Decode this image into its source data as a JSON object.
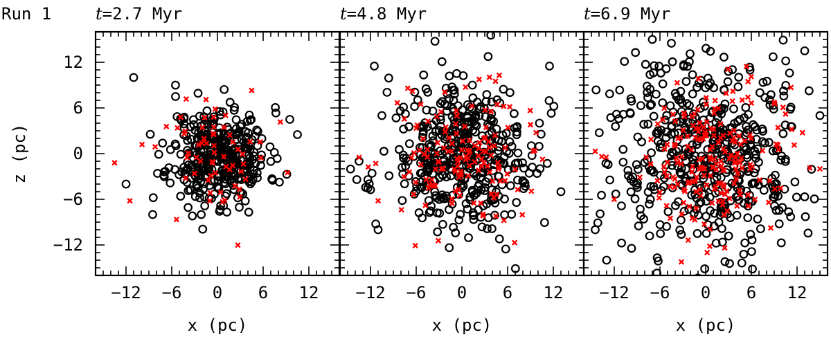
{
  "run_label": "Run 1",
  "ylabel": "z (pc)",
  "xlabel": "x (pc)",
  "colors": {
    "circle": "#000000",
    "cross": "#ff0000",
    "axes": "#000000"
  },
  "chart_data": [
    {
      "type": "scatter",
      "title": "t=2.7 Myr",
      "title_var": "t",
      "title_rest": "=2.7 Myr",
      "xlabel": "x (pc)",
      "ylabel": "z (pc)",
      "xlim": [
        -16,
        16
      ],
      "ylim": [
        -16,
        16
      ],
      "xticks": [
        -12,
        -6,
        0,
        6,
        12
      ],
      "yticks": [
        -12,
        -6,
        0,
        6,
        12
      ],
      "tick_labels": [
        "−12",
        "−6",
        "0",
        "6",
        "12"
      ],
      "series": [
        {
          "marker": "circle",
          "color": "#000000",
          "spread": 3.2,
          "seed": 11,
          "count": 380
        },
        {
          "marker": "cross",
          "color": "#ff0000",
          "spread": 3.8,
          "seed": 12,
          "count": 60
        }
      ],
      "outliers": {
        "circle": [
          [
            -11,
            10
          ],
          [
            -12,
            -4
          ],
          [
            -8.5,
            -8
          ],
          [
            -5.5,
            7.5
          ],
          [
            9.5,
            4.5
          ],
          [
            10.5,
            2.5
          ]
        ],
        "cross": [
          [
            -13.5,
            -1.2
          ],
          [
            -11.5,
            -6.2
          ],
          [
            4.5,
            8.3
          ],
          [
            9.2,
            -2.5
          ]
        ]
      }
    },
    {
      "type": "scatter",
      "title": "t=4.8 Myr",
      "title_var": "t",
      "title_rest": "=4.8 Myr",
      "xlabel": "x (pc)",
      "ylabel": "",
      "xlim": [
        -16,
        16
      ],
      "ylim": [
        -16,
        16
      ],
      "xticks": [
        -12,
        -6,
        0,
        6,
        12
      ],
      "yticks": [
        -12,
        -6,
        0,
        6,
        12
      ],
      "tick_labels": [
        "−12",
        "−6",
        "0",
        "6",
        "12"
      ],
      "series": [
        {
          "marker": "circle",
          "color": "#000000",
          "spread": 4.8,
          "seed": 21,
          "count": 440
        },
        {
          "marker": "cross",
          "color": "#ff0000",
          "spread": 4.2,
          "seed": 22,
          "count": 140
        }
      ],
      "outliers": {
        "circle": [
          [
            -11.5,
            11.5
          ],
          [
            -13.5,
            -1
          ],
          [
            -10.5,
            5
          ],
          [
            11.5,
            11.5
          ],
          [
            13,
            -5
          ],
          [
            -11,
            -10
          ]
        ],
        "cross": [
          [
            -13.5,
            -0.5
          ],
          [
            -11,
            -6.2
          ],
          [
            9,
            3.8
          ],
          [
            -6.5,
            8.2
          ]
        ]
      }
    },
    {
      "type": "scatter",
      "title": "t=6.9 Myr",
      "title_var": "t",
      "title_rest": "=6.9 Myr",
      "xlabel": "x (pc)",
      "ylabel": "",
      "xlim": [
        -16,
        16
      ],
      "ylim": [
        -16,
        16
      ],
      "xticks": [
        -12,
        -6,
        0,
        6,
        12
      ],
      "yticks": [
        -12,
        -6,
        0,
        6,
        12
      ],
      "tick_labels": [
        "−12",
        "−6",
        "0",
        "6",
        "12"
      ],
      "series": [
        {
          "marker": "circle",
          "color": "#000000",
          "spread": 6.2,
          "seed": 31,
          "count": 500
        },
        {
          "marker": "cross",
          "color": "#ff0000",
          "spread": 5.0,
          "seed": 32,
          "count": 200
        }
      ],
      "outliers": {
        "circle": [
          [
            -7,
            15
          ],
          [
            -4.5,
            14.5
          ],
          [
            13,
            13.5
          ],
          [
            -14.5,
            -10
          ],
          [
            15,
            5
          ],
          [
            -13,
            -14
          ]
        ],
        "cross": [
          [
            -14.5,
            0.3
          ],
          [
            -12,
            -6
          ],
          [
            15,
            -2
          ],
          [
            10.5,
            5.2
          ],
          [
            0.2,
            -13
          ]
        ]
      }
    }
  ]
}
